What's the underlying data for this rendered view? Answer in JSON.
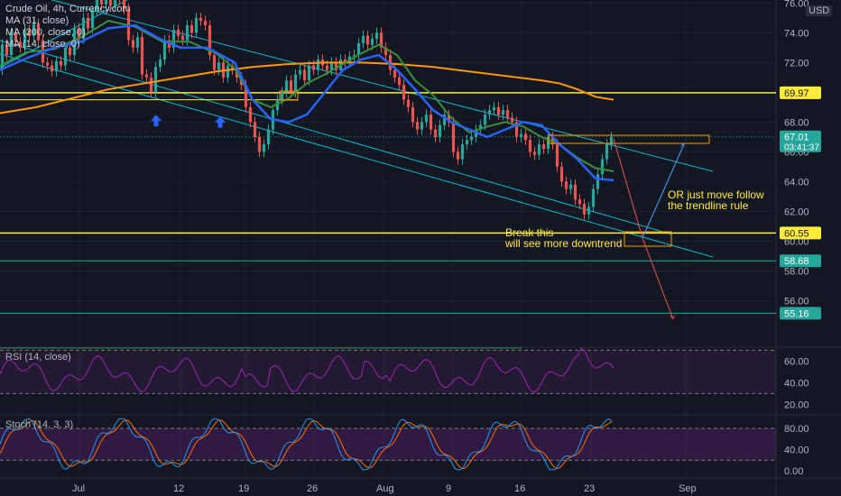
{
  "header": {
    "title": "Crude Oil, 4h, Currency.com",
    "ma1": "MA (31, close)",
    "ma2": "MA (200, close, 0)",
    "ma3": "MA (14, close, 0)",
    "currency": "USD"
  },
  "price_badges": {
    "current": "67.01",
    "countdown": "03:41:37",
    "level1": "69.97",
    "level2": "60.55",
    "level3": "58.68",
    "level4": "55.16"
  },
  "annotations": {
    "break_line1": "Break this",
    "break_line2": "will see more downtrend",
    "or_line1": "OR just move follow",
    "or_line2": "the trendline rule"
  },
  "rsi_pane": {
    "label": "RSI (14, close)",
    "ticks": [
      "60.00",
      "40.00",
      "20.00"
    ]
  },
  "stoch_pane": {
    "label": "Stoch (14, 3, 3)",
    "ticks": [
      "80.00",
      "40.00",
      "0.00"
    ]
  },
  "x_axis": {
    "labels": [
      "Jul",
      "12",
      "19",
      "26",
      "Aug",
      "9",
      "16",
      "23",
      "Sep"
    ]
  },
  "colors": {
    "background": "#131722",
    "ma31": "#2962ff",
    "ma200": "#ff9800",
    "ma14": "#388e3c",
    "support_line": "#ffeb3b",
    "teal_line": "#26a69a",
    "trendline": "#00bcd4",
    "rsi": "#9c27b0",
    "stoch_k": "#2196f3",
    "stoch_d": "#ff6d00",
    "up": "#26a69a",
    "down": "#ef5350"
  },
  "chart_data": {
    "type": "candlestick",
    "title": "Crude Oil, 4h, Currency.com",
    "ylim": [
      53.0,
      76.2
    ],
    "yticks": [
      56,
      58,
      60,
      62,
      64,
      66,
      68,
      70,
      72,
      74,
      76
    ],
    "x_categories": [
      "Jul",
      "12",
      "19",
      "26",
      "Aug",
      "9",
      "16",
      "23",
      "Sep"
    ],
    "price_path": [
      [
        0,
        71.5
      ],
      [
        5,
        73.2
      ],
      [
        10,
        72.5
      ],
      [
        15,
        74.0
      ],
      [
        20,
        73.4
      ],
      [
        25,
        73.0
      ],
      [
        30,
        74.2
      ],
      [
        35,
        73.8
      ],
      [
        40,
        74.6
      ],
      [
        45,
        73.5
      ],
      [
        50,
        72.0
      ],
      [
        55,
        71.8
      ],
      [
        60,
        71.4
      ],
      [
        65,
        72.1
      ],
      [
        70,
        71.8
      ],
      [
        75,
        73.0
      ],
      [
        80,
        72.5
      ],
      [
        85,
        74.3
      ],
      [
        90,
        73.6
      ],
      [
        95,
        75.0
      ],
      [
        100,
        74.3
      ],
      [
        105,
        75.5
      ],
      [
        110,
        76.3
      ],
      [
        115,
        75.9
      ],
      [
        120,
        76.6
      ],
      [
        125,
        75.8
      ],
      [
        130,
        76.5
      ],
      [
        135,
        76.2
      ],
      [
        140,
        75.6
      ],
      [
        145,
        73.5
      ],
      [
        150,
        73.0
      ],
      [
        155,
        73.7
      ],
      [
        160,
        71.2
      ],
      [
        165,
        71.0
      ],
      [
        170,
        70.0
      ],
      [
        175,
        71.7
      ],
      [
        180,
        72.2
      ],
      [
        185,
        73.5
      ],
      [
        190,
        73.0
      ],
      [
        195,
        74.2
      ],
      [
        200,
        73.8
      ],
      [
        205,
        73.5
      ],
      [
        210,
        74.5
      ],
      [
        215,
        74.0
      ],
      [
        220,
        75.0
      ],
      [
        225,
        74.8
      ],
      [
        230,
        74.5
      ],
      [
        235,
        72.5
      ],
      [
        240,
        71.5
      ],
      [
        245,
        72.0
      ],
      [
        250,
        71.0
      ],
      [
        255,
        71.8
      ],
      [
        260,
        71.5
      ],
      [
        265,
        71.0
      ],
      [
        270,
        70.5
      ],
      [
        275,
        69.0
      ],
      [
        280,
        68.0
      ],
      [
        285,
        67.0
      ],
      [
        290,
        66.0
      ],
      [
        295,
        66.5
      ],
      [
        300,
        67.5
      ],
      [
        305,
        68.8
      ],
      [
        310,
        69.5
      ],
      [
        315,
        70.0
      ],
      [
        320,
        70.8
      ],
      [
        325,
        70.0
      ],
      [
        330,
        71.2
      ],
      [
        335,
        71.5
      ],
      [
        340,
        70.8
      ],
      [
        345,
        71.8
      ],
      [
        350,
        71.5
      ],
      [
        355,
        72.2
      ],
      [
        360,
        71.8
      ],
      [
        365,
        71.5
      ],
      [
        370,
        72.0
      ],
      [
        375,
        71.5
      ],
      [
        380,
        72.2
      ],
      [
        385,
        72.0
      ],
      [
        390,
        72.4
      ],
      [
        395,
        72.5
      ],
      [
        400,
        73.3
      ],
      [
        405,
        73.8
      ],
      [
        410,
        73.2
      ],
      [
        415,
        73.6
      ],
      [
        420,
        74.0
      ],
      [
        425,
        73.0
      ],
      [
        430,
        72.5
      ],
      [
        435,
        71.5
      ],
      [
        440,
        71.0
      ],
      [
        445,
        70.5
      ],
      [
        450,
        69.5
      ],
      [
        455,
        69.0
      ],
      [
        460,
        68.0
      ],
      [
        465,
        67.5
      ],
      [
        470,
        68.0
      ],
      [
        475,
        68.5
      ],
      [
        480,
        67.5
      ],
      [
        485,
        67.0
      ],
      [
        490,
        67.8
      ],
      [
        495,
        68.5
      ],
      [
        500,
        68.0
      ],
      [
        505,
        66.0
      ],
      [
        510,
        65.5
      ],
      [
        515,
        66.5
      ],
      [
        520,
        66.8
      ],
      [
        525,
        67.0
      ],
      [
        530,
        67.5
      ],
      [
        535,
        67.8
      ],
      [
        540,
        68.5
      ],
      [
        545,
        68.8
      ],
      [
        550,
        69.0
      ],
      [
        555,
        68.5
      ],
      [
        560,
        68.8
      ],
      [
        565,
        68.3
      ],
      [
        570,
        68.0
      ],
      [
        575,
        67.0
      ],
      [
        580,
        67.2
      ],
      [
        585,
        66.8
      ],
      [
        590,
        66.0
      ],
      [
        595,
        65.8
      ],
      [
        600,
        66.5
      ],
      [
        605,
        66.2
      ],
      [
        610,
        67.0
      ],
      [
        615,
        66.5
      ],
      [
        620,
        65.0
      ],
      [
        625,
        64.0
      ],
      [
        630,
        63.5
      ],
      [
        635,
        63.8
      ],
      [
        640,
        62.8
      ],
      [
        645,
        62.5
      ],
      [
        650,
        61.8
      ],
      [
        655,
        62.3
      ],
      [
        660,
        63.5
      ],
      [
        665,
        64.5
      ],
      [
        670,
        65.5
      ],
      [
        675,
        66.5
      ],
      [
        680,
        67.01
      ]
    ],
    "ma31_path": [
      [
        0,
        71.5
      ],
      [
        30,
        72.3
      ],
      [
        60,
        73.0
      ],
      [
        90,
        73.4
      ],
      [
        120,
        74.3
      ],
      [
        150,
        74.5
      ],
      [
        180,
        73.5
      ],
      [
        200,
        73.0
      ],
      [
        230,
        73.0
      ],
      [
        260,
        72.0
      ],
      [
        280,
        69.5
      ],
      [
        300,
        68.2
      ],
      [
        320,
        68.0
      ],
      [
        340,
        68.5
      ],
      [
        360,
        70.0
      ],
      [
        380,
        71.5
      ],
      [
        400,
        72.2
      ],
      [
        420,
        72.5
      ],
      [
        440,
        71.5
      ],
      [
        460,
        70.2
      ],
      [
        480,
        68.8
      ],
      [
        500,
        68.0
      ],
      [
        520,
        67.5
      ],
      [
        540,
        67.0
      ],
      [
        560,
        67.5
      ],
      [
        580,
        68.0
      ],
      [
        600,
        67.8
      ],
      [
        620,
        66.5
      ],
      [
        640,
        65.5
      ],
      [
        660,
        64.2
      ],
      [
        680,
        64.1
      ]
    ],
    "ma14_path": [
      [
        0,
        71.8
      ],
      [
        30,
        72.7
      ],
      [
        60,
        72.9
      ],
      [
        90,
        73.7
      ],
      [
        120,
        74.8
      ],
      [
        150,
        74.4
      ],
      [
        180,
        73.4
      ],
      [
        210,
        73.4
      ],
      [
        240,
        72.6
      ],
      [
        260,
        71.6
      ],
      [
        280,
        69.5
      ],
      [
        300,
        69.0
      ],
      [
        320,
        69.6
      ],
      [
        340,
        70.6
      ],
      [
        360,
        71.2
      ],
      [
        380,
        71.9
      ],
      [
        400,
        72.6
      ],
      [
        420,
        73.2
      ],
      [
        440,
        72.5
      ],
      [
        460,
        70.8
      ],
      [
        480,
        69.8
      ],
      [
        500,
        68.3
      ],
      [
        520,
        67.3
      ],
      [
        540,
        67.7
      ],
      [
        560,
        68.0
      ],
      [
        580,
        67.7
      ],
      [
        600,
        67.0
      ],
      [
        620,
        66.5
      ],
      [
        640,
        65.6
      ],
      [
        660,
        64.9
      ],
      [
        680,
        64.7
      ]
    ],
    "ma200_path": [
      [
        0,
        68.6
      ],
      [
        40,
        69.0
      ],
      [
        80,
        69.6
      ],
      [
        120,
        70.2
      ],
      [
        160,
        70.6
      ],
      [
        200,
        71.0
      ],
      [
        240,
        71.4
      ],
      [
        280,
        71.7
      ],
      [
        320,
        71.9
      ],
      [
        360,
        72.0
      ],
      [
        400,
        72.0
      ],
      [
        440,
        71.9
      ],
      [
        480,
        71.7
      ],
      [
        520,
        71.4
      ],
      [
        560,
        71.1
      ],
      [
        600,
        70.8
      ],
      [
        620,
        70.6
      ],
      [
        640,
        70.2
      ],
      [
        660,
        69.7
      ],
      [
        680,
        69.5
      ]
    ],
    "horizontal_levels": [
      {
        "value": 69.97,
        "color": "#ffeb3b"
      },
      {
        "value": 60.55,
        "color": "#ffeb3b"
      },
      {
        "value": 58.68,
        "color": "#26a69a"
      },
      {
        "value": 55.16,
        "color": "#26a69a"
      }
    ],
    "ma_label": "MA (31, close)"
  }
}
